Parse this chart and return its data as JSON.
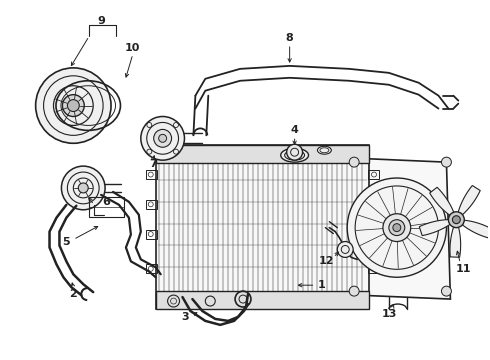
{
  "background_color": "#ffffff",
  "line_color": "#222222",
  "figsize": [
    4.9,
    3.6
  ],
  "dpi": 100,
  "image_path": null
}
